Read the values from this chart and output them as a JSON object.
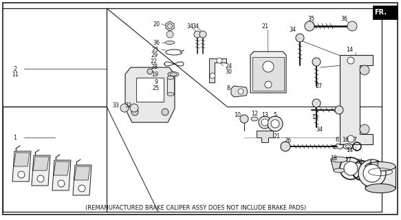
{
  "background_color": "#ffffff",
  "caption": "(REMANUFACTURED BRAKE CALIPER ASSY DOES NOT INCLUDE BRAKE PADS)",
  "caption_fontsize": 6.0,
  "fr_label": "FR.",
  "figsize": [
    5.83,
    3.2
  ],
  "dpi": 100,
  "line_color": "#1a1a1a",
  "border_lw": 1.0,
  "component_lw": 0.7,
  "label_fontsize": 5.8,
  "label_color": "#111111"
}
